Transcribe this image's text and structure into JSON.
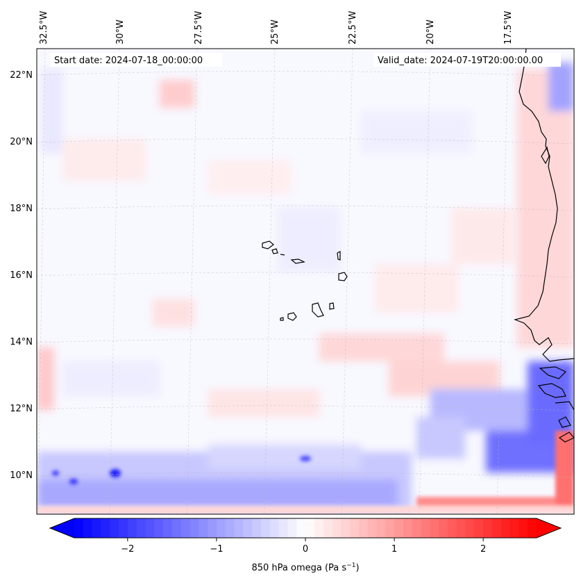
{
  "map": {
    "start_label": "Start date: 2024-07-18_00:00:00",
    "valid_label": "Valid_date: 2024-07-19T20:00:00.00",
    "lon_labels": [
      "32.5°W",
      "30°W",
      "27.5°W",
      "25°W",
      "22.5°W",
      "20°W",
      "17.5°W"
    ],
    "lat_labels": [
      "22°N",
      "20°N",
      "18°N",
      "16°N",
      "14°N",
      "12°N",
      "10°N"
    ],
    "colormap": "bwr",
    "colors": {
      "neg": "#0000ff",
      "mid": "#ffffff",
      "pos": "#ff0000",
      "coast": "#000000"
    }
  },
  "colorbar": {
    "ticks": [
      "−2",
      "−1",
      "0",
      "1",
      "2"
    ],
    "tick_values": [
      -2,
      -1,
      0,
      1,
      2
    ],
    "range": [
      -2.6,
      2.6
    ],
    "label_prefix": "850 hPa omega (Pa s",
    "label_exp": "−1",
    "label_suffix": ")",
    "extend": "both"
  }
}
